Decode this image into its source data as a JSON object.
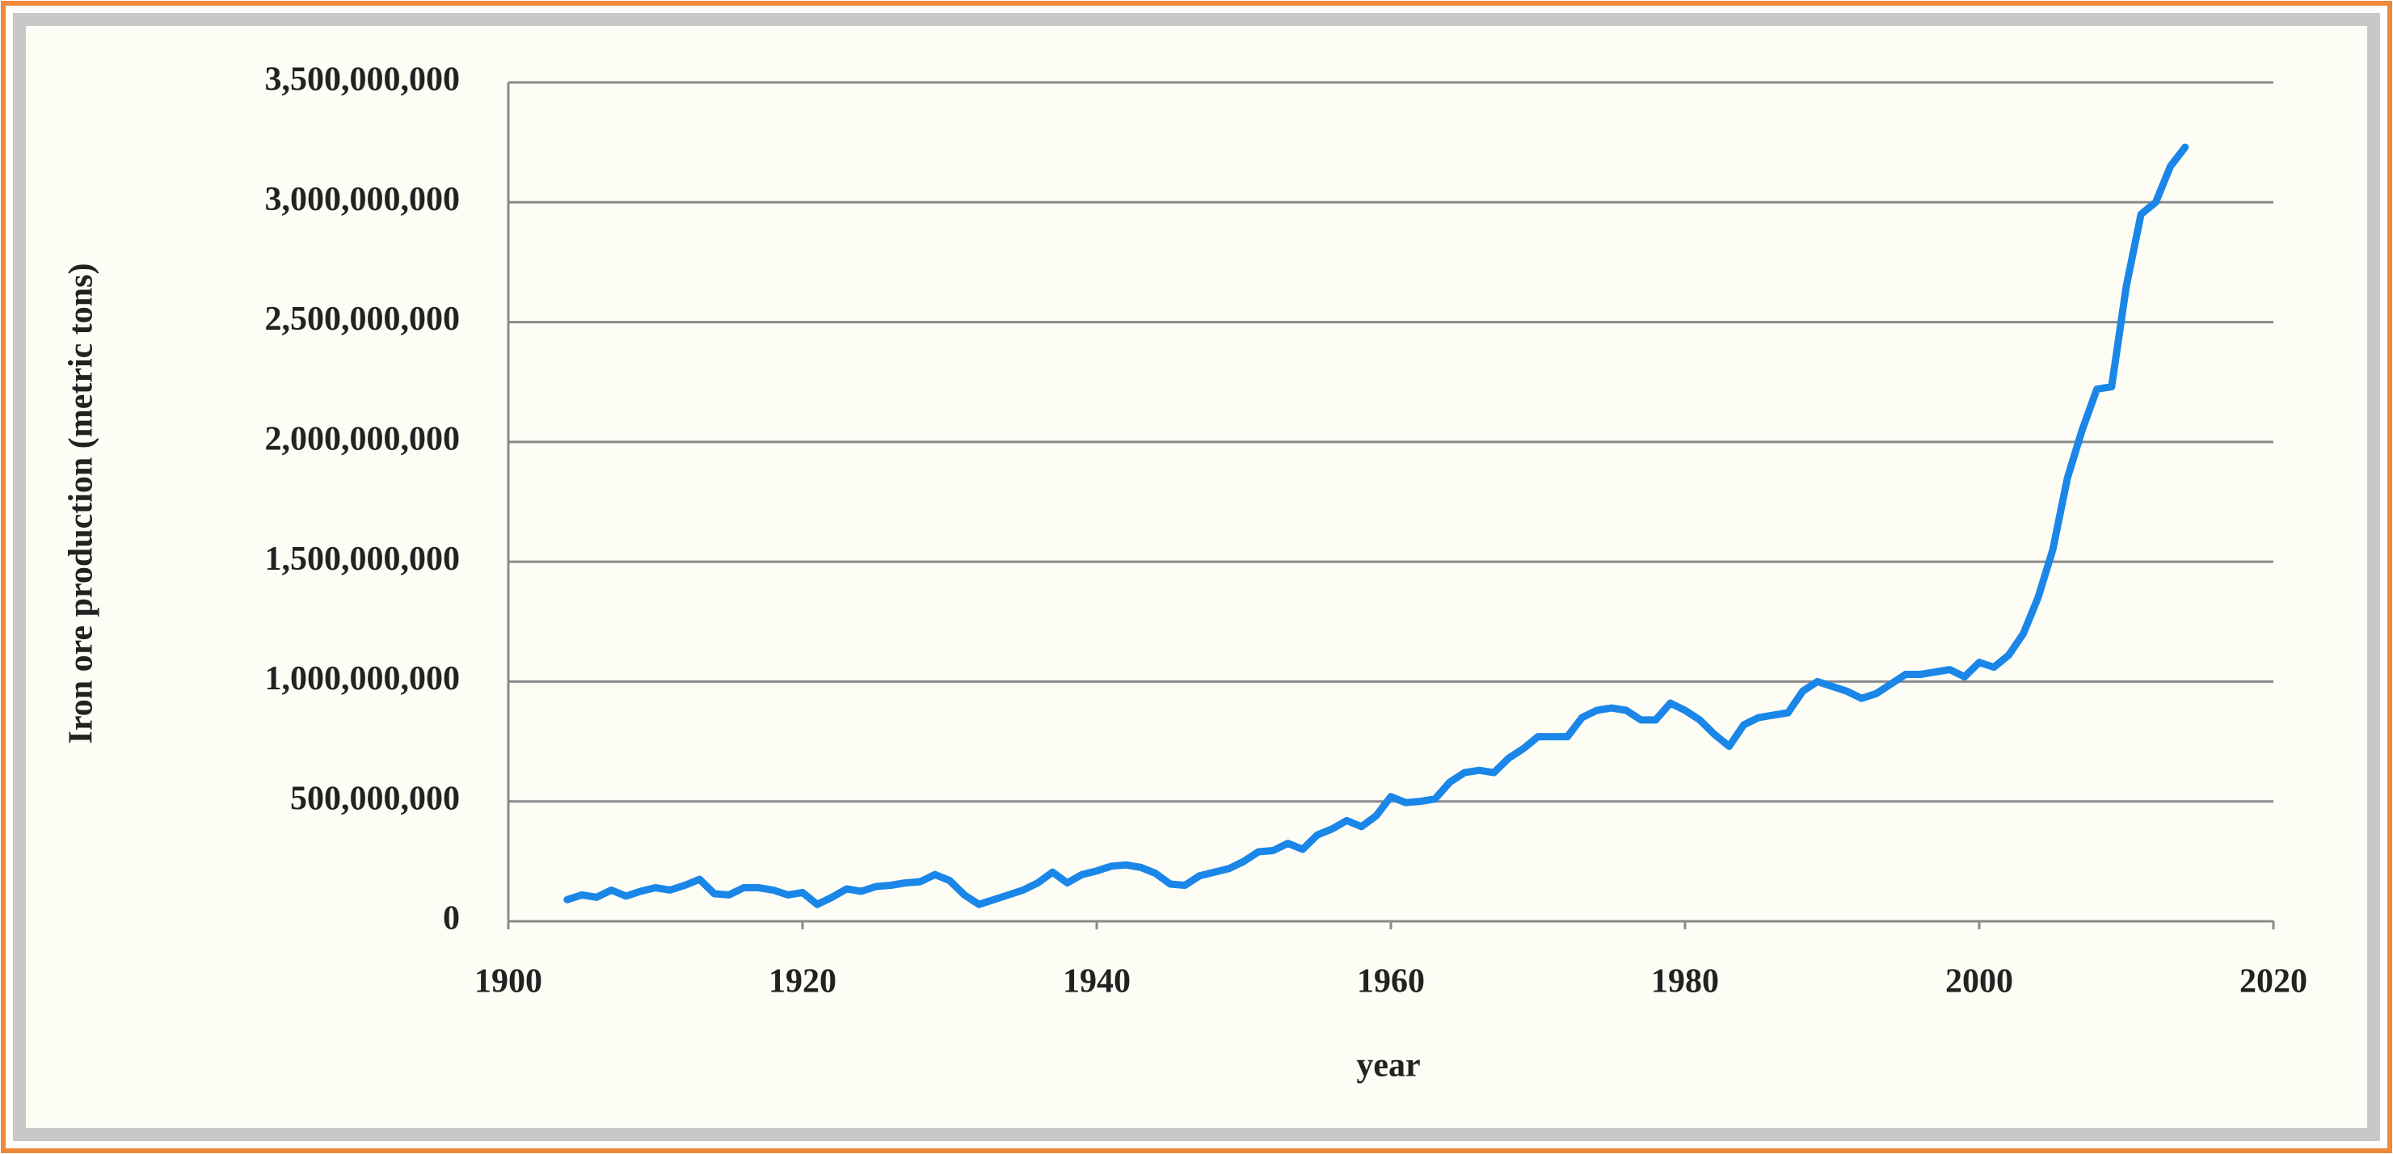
{
  "chart_data": {
    "type": "line",
    "x_label": "year",
    "y_label": "Iron ore production (metric tons)",
    "x": [
      1904,
      1905,
      1906,
      1907,
      1908,
      1909,
      1910,
      1911,
      1912,
      1913,
      1914,
      1915,
      1916,
      1917,
      1918,
      1919,
      1920,
      1921,
      1922,
      1923,
      1924,
      1925,
      1926,
      1927,
      1928,
      1929,
      1930,
      1931,
      1932,
      1933,
      1934,
      1935,
      1936,
      1937,
      1938,
      1939,
      1940,
      1941,
      1942,
      1943,
      1944,
      1945,
      1946,
      1947,
      1948,
      1949,
      1950,
      1951,
      1952,
      1953,
      1954,
      1955,
      1956,
      1957,
      1958,
      1959,
      1960,
      1961,
      1962,
      1963,
      1964,
      1965,
      1966,
      1967,
      1968,
      1969,
      1970,
      1971,
      1972,
      1973,
      1974,
      1975,
      1976,
      1977,
      1978,
      1979,
      1980,
      1981,
      1982,
      1983,
      1984,
      1985,
      1986,
      1987,
      1988,
      1989,
      1990,
      1991,
      1992,
      1993,
      1994,
      1995,
      1996,
      1997,
      1998,
      1999,
      2000,
      2001,
      2002,
      2003,
      2004,
      2005,
      2006,
      2007,
      2008,
      2009,
      2010,
      2011,
      2012,
      2013,
      2014
    ],
    "values": [
      90000000,
      110000000,
      100000000,
      130000000,
      105000000,
      125000000,
      140000000,
      130000000,
      150000000,
      175000000,
      115000000,
      110000000,
      140000000,
      140000000,
      130000000,
      110000000,
      120000000,
      70000000,
      100000000,
      135000000,
      125000000,
      145000000,
      150000000,
      160000000,
      165000000,
      195000000,
      170000000,
      110000000,
      70000000,
      90000000,
      110000000,
      130000000,
      160000000,
      205000000,
      160000000,
      195000000,
      210000000,
      230000000,
      235000000,
      225000000,
      200000000,
      155000000,
      150000000,
      190000000,
      205000000,
      220000000,
      250000000,
      290000000,
      295000000,
      325000000,
      300000000,
      360000000,
      385000000,
      420000000,
      395000000,
      440000000,
      520000000,
      495000000,
      500000000,
      510000000,
      580000000,
      620000000,
      630000000,
      620000000,
      680000000,
      720000000,
      770000000,
      770000000,
      770000000,
      850000000,
      880000000,
      890000000,
      880000000,
      840000000,
      840000000,
      910000000,
      880000000,
      840000000,
      780000000,
      730000000,
      820000000,
      850000000,
      860000000,
      870000000,
      960000000,
      1000000000,
      980000000,
      960000000,
      930000000,
      950000000,
      990000000,
      1030000000,
      1030000000,
      1040000000,
      1050000000,
      1020000000,
      1080000000,
      1060000000,
      1110000000,
      1200000000,
      1350000000,
      1550000000,
      1850000000,
      2050000000,
      2220000000,
      2230000000,
      2650000000,
      2950000000,
      3000000000,
      3150000000,
      3230000000
    ],
    "color": "#1a86e8",
    "xlim": [
      1900,
      2020
    ],
    "xticks": [
      1900,
      1920,
      1940,
      1960,
      1980,
      2000,
      2020
    ],
    "ylim": [
      0,
      3500000000
    ],
    "yticks": [
      0,
      {
        "value": 500000000,
        "label": "500,000,000"
      },
      {
        "value": 1000000000,
        "label": "1,000,000,000"
      },
      {
        "value": 1500000000,
        "label": "1,500,000,000"
      },
      {
        "value": 2000000000,
        "label": "2,000,000,000"
      },
      {
        "value": 2500000000,
        "label": "2,500,000,000"
      },
      {
        "value": 3000000000,
        "label": "3,000,000,000"
      },
      {
        "value": 3500000000,
        "label": "3,500,000,000"
      }
    ],
    "grid": true
  }
}
